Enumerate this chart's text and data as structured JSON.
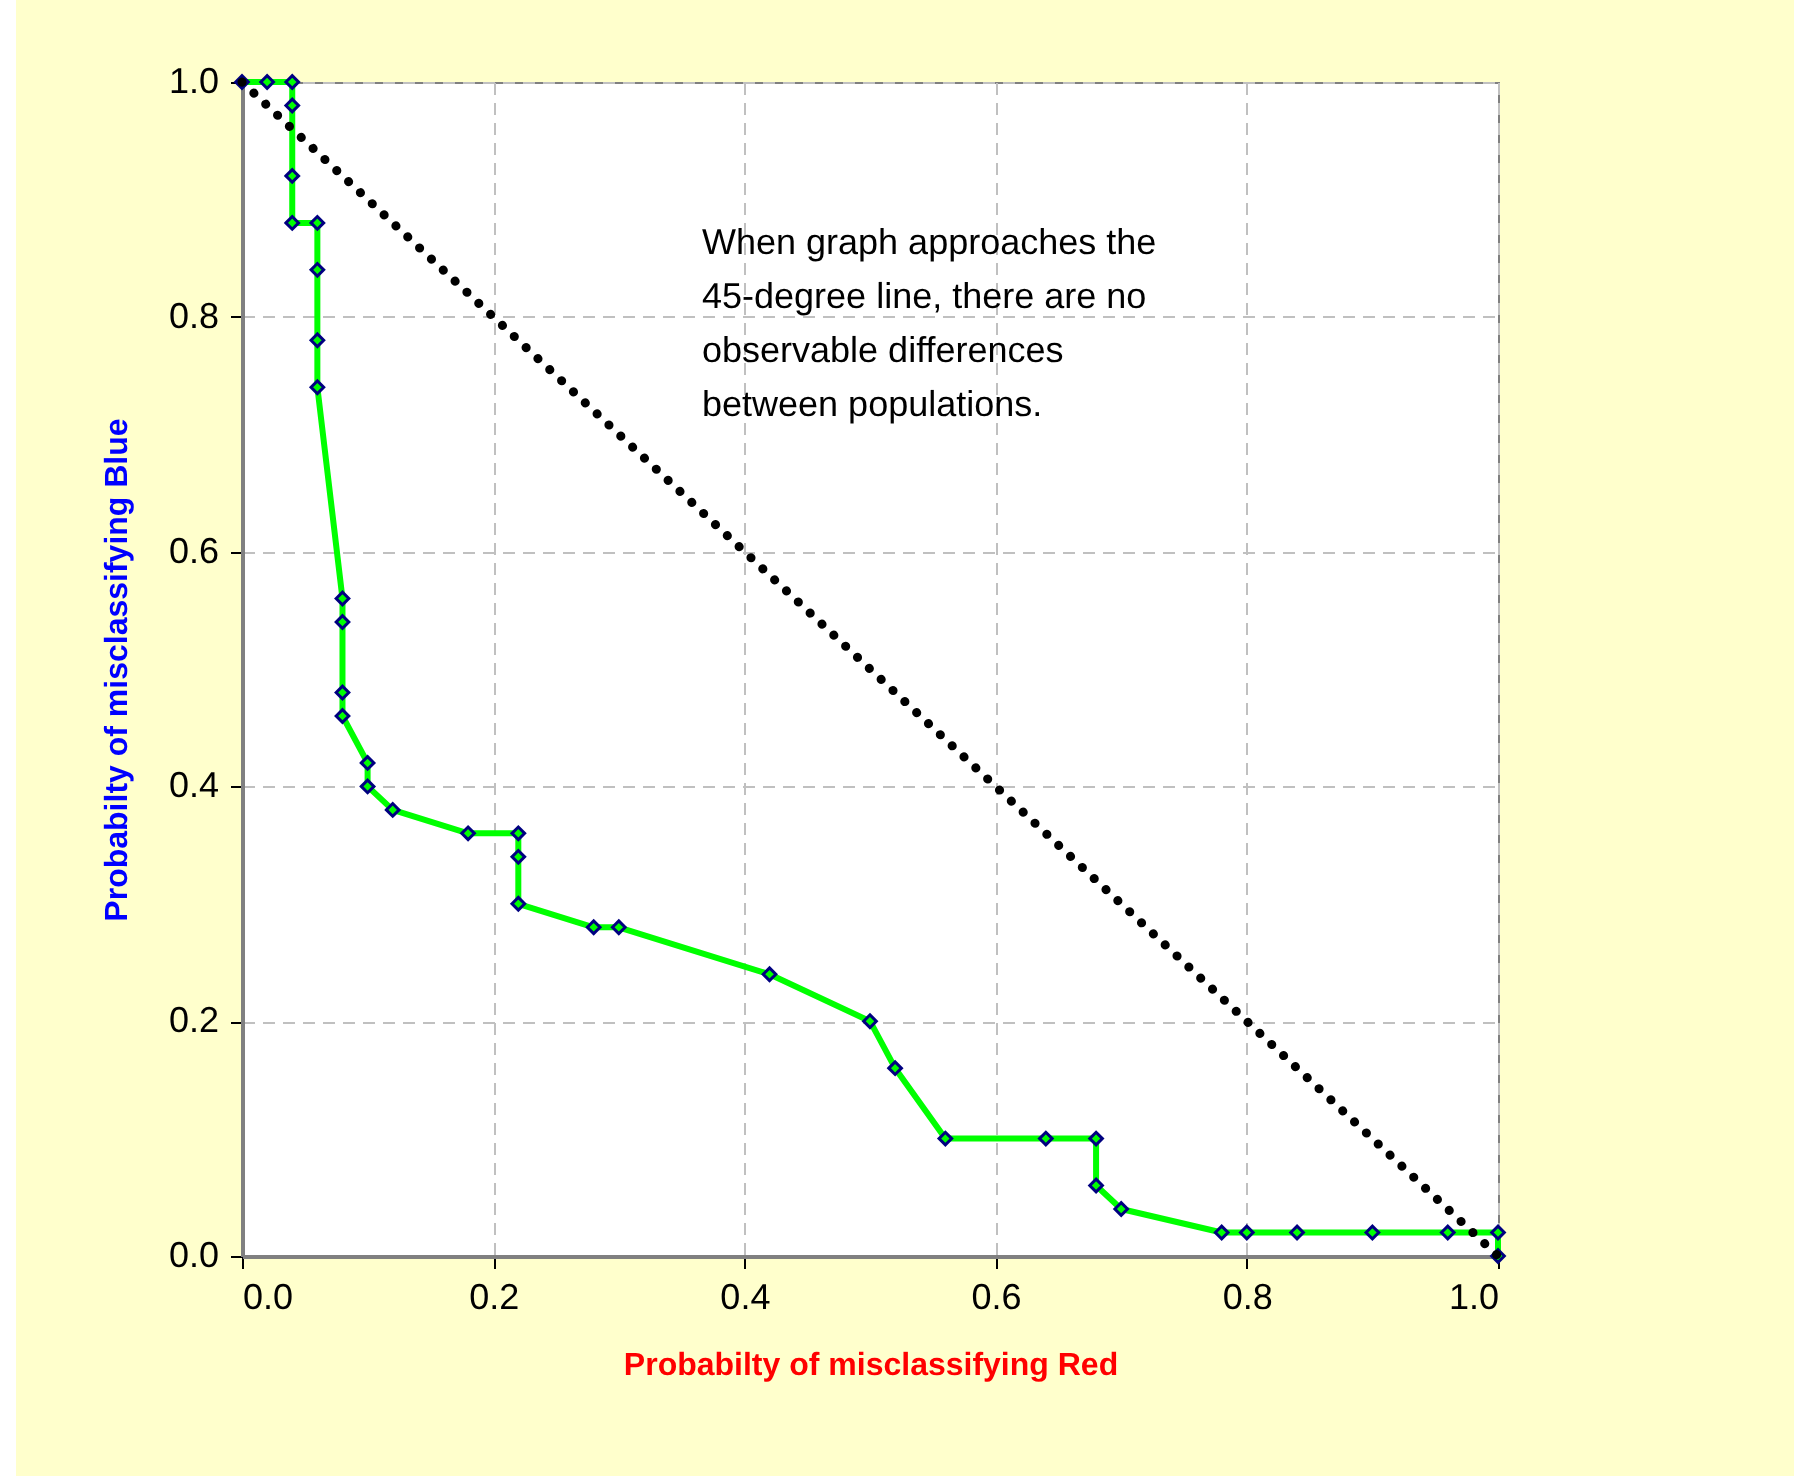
{
  "chart_data": {
    "type": "line",
    "xlabel": "Probabilty of misclassifying Red",
    "ylabel": "Probabilty of misclassifying Blue",
    "annotations": [
      "When graph approaches the 45-degree line, there are no observable differences between populations."
    ],
    "series": [
      {
        "color": "#00ff00",
        "marker": "diamond",
        "x": [
          0,
          0.02,
          0.04,
          0.04,
          0.04,
          0.04,
          0.06,
          0.06,
          0.06,
          0.06,
          0.08,
          0.08,
          0.08,
          0.08,
          0.1,
          0.1,
          0.12,
          0.18,
          0.22,
          0.22,
          0.22,
          0.28,
          0.3,
          0.42,
          0.5,
          0.52,
          0.56,
          0.64,
          0.68,
          0.68,
          0.7,
          0.78,
          0.8,
          0.84,
          0.9,
          0.96,
          1.0,
          1.0
        ],
        "values": [
          1,
          1,
          1,
          0.98,
          0.92,
          0.88,
          0.88,
          0.84,
          0.78,
          0.74,
          0.56,
          0.54,
          0.48,
          0.46,
          0.42,
          0.4,
          0.38,
          0.36,
          0.36,
          0.34,
          0.3,
          0.28,
          0.28,
          0.24,
          0.2,
          0.16,
          0.1,
          0.1,
          0.1,
          0.06,
          0.04,
          0.02,
          0.02,
          0.02,
          0.02,
          0.02,
          0.02,
          0
        ]
      },
      {
        "type": "line",
        "color": "#000000",
        "marker": "none",
        "line_style": "dotted",
        "x": [
          0,
          1
        ],
        "values": [
          1,
          0
        ]
      }
    ],
    "xlim": [
      0,
      1
    ],
    "ylim": [
      0,
      1
    ],
    "xticks": [
      {
        "value": 0,
        "label": "0.0"
      },
      0.2,
      0.4,
      0.6,
      0.8,
      {
        "value": 1,
        "label": "1.0"
      }
    ],
    "yticks": [
      {
        "value": 0,
        "label": "0.0"
      },
      0.2,
      0.4,
      0.6,
      0.8,
      {
        "value": 1,
        "label": "1.0"
      }
    ],
    "grid": true
  }
}
